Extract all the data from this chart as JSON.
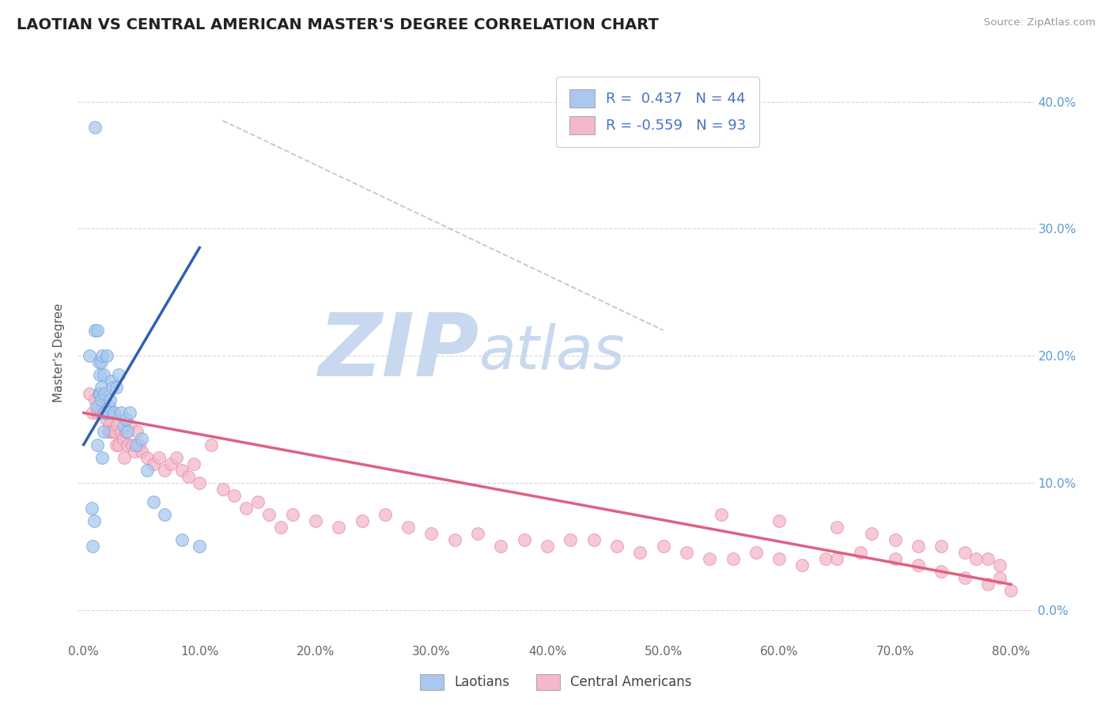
{
  "title": "LAOTIAN VS CENTRAL AMERICAN MASTER'S DEGREE CORRELATION CHART",
  "source": "Source: ZipAtlas.com",
  "ylabel": "Master's Degree",
  "xlim": [
    -0.005,
    0.82
  ],
  "ylim": [
    -0.025,
    0.43
  ],
  "legend_blue_label": "R =  0.437   N = 44",
  "legend_pink_label": "R = -0.559   N = 93",
  "laotian_color": "#a8c8f0",
  "laotian_edge_color": "#7aaad8",
  "central_american_color": "#f4b8ca",
  "central_american_edge_color": "#e890a8",
  "trendline_blue_color": "#3060b0",
  "trendline_pink_color": "#e06080",
  "dashed_line_color": "#b0b8c8",
  "title_color": "#222222",
  "watermark_zip": "ZIP",
  "watermark_atlas": "atlas",
  "watermark_color_zip": "#c8d8ee",
  "watermark_color_atlas": "#c8d8ee",
  "grid_color": "#cccccc",
  "x_tick_vals": [
    0.0,
    0.1,
    0.2,
    0.3,
    0.4,
    0.5,
    0.6,
    0.7,
    0.8
  ],
  "x_tick_labels": [
    "0.0%",
    "10.0%",
    "20.0%",
    "30.0%",
    "40.0%",
    "50.0%",
    "60.0%",
    "70.0%",
    "80.0%"
  ],
  "y_tick_vals": [
    0.0,
    0.1,
    0.2,
    0.3,
    0.4
  ],
  "y_tick_labels": [
    "0.0%",
    "10.0%",
    "20.0%",
    "30.0%",
    "40.0%"
  ],
  "blue_trendline_x": [
    0.0,
    0.1
  ],
  "blue_trendline_y": [
    0.13,
    0.285
  ],
  "pink_trendline_x": [
    0.0,
    0.8
  ],
  "pink_trendline_y": [
    0.155,
    0.02
  ],
  "dashed_line_x": [
    0.12,
    0.5
  ],
  "dashed_line_y": [
    0.385,
    0.22
  ],
  "laotian_x": [
    0.005,
    0.007,
    0.008,
    0.009,
    0.01,
    0.01,
    0.011,
    0.012,
    0.012,
    0.013,
    0.013,
    0.014,
    0.014,
    0.015,
    0.015,
    0.015,
    0.016,
    0.016,
    0.017,
    0.017,
    0.018,
    0.018,
    0.019,
    0.02,
    0.021,
    0.022,
    0.023,
    0.024,
    0.025,
    0.026,
    0.028,
    0.03,
    0.032,
    0.034,
    0.036,
    0.038,
    0.04,
    0.045,
    0.05,
    0.055,
    0.06,
    0.07,
    0.085,
    0.1
  ],
  "laotian_y": [
    0.2,
    0.08,
    0.05,
    0.07,
    0.38,
    0.22,
    0.16,
    0.13,
    0.22,
    0.17,
    0.195,
    0.185,
    0.17,
    0.175,
    0.165,
    0.195,
    0.2,
    0.12,
    0.185,
    0.14,
    0.17,
    0.155,
    0.155,
    0.2,
    0.155,
    0.16,
    0.165,
    0.18,
    0.175,
    0.155,
    0.175,
    0.185,
    0.155,
    0.145,
    0.15,
    0.14,
    0.155,
    0.13,
    0.135,
    0.11,
    0.085,
    0.075,
    0.055,
    0.05
  ],
  "central_american_x": [
    0.005,
    0.008,
    0.01,
    0.012,
    0.013,
    0.015,
    0.016,
    0.017,
    0.018,
    0.019,
    0.02,
    0.021,
    0.022,
    0.023,
    0.024,
    0.025,
    0.026,
    0.027,
    0.028,
    0.029,
    0.03,
    0.032,
    0.034,
    0.035,
    0.036,
    0.038,
    0.04,
    0.042,
    0.044,
    0.046,
    0.048,
    0.05,
    0.055,
    0.06,
    0.065,
    0.07,
    0.075,
    0.08,
    0.085,
    0.09,
    0.095,
    0.1,
    0.11,
    0.12,
    0.13,
    0.14,
    0.15,
    0.16,
    0.17,
    0.18,
    0.2,
    0.22,
    0.24,
    0.26,
    0.28,
    0.3,
    0.32,
    0.34,
    0.36,
    0.38,
    0.4,
    0.42,
    0.44,
    0.46,
    0.48,
    0.5,
    0.52,
    0.54,
    0.56,
    0.58,
    0.6,
    0.62,
    0.64,
    0.65,
    0.67,
    0.7,
    0.72,
    0.74,
    0.76,
    0.78,
    0.79,
    0.8,
    0.79,
    0.78,
    0.77,
    0.76,
    0.74,
    0.72,
    0.7,
    0.68,
    0.65,
    0.6,
    0.55
  ],
  "central_american_y": [
    0.17,
    0.155,
    0.165,
    0.155,
    0.16,
    0.155,
    0.165,
    0.16,
    0.155,
    0.15,
    0.155,
    0.14,
    0.145,
    0.14,
    0.14,
    0.155,
    0.14,
    0.14,
    0.13,
    0.145,
    0.13,
    0.14,
    0.135,
    0.12,
    0.14,
    0.13,
    0.145,
    0.13,
    0.125,
    0.14,
    0.13,
    0.125,
    0.12,
    0.115,
    0.12,
    0.11,
    0.115,
    0.12,
    0.11,
    0.105,
    0.115,
    0.1,
    0.13,
    0.095,
    0.09,
    0.08,
    0.085,
    0.075,
    0.065,
    0.075,
    0.07,
    0.065,
    0.07,
    0.075,
    0.065,
    0.06,
    0.055,
    0.06,
    0.05,
    0.055,
    0.05,
    0.055,
    0.055,
    0.05,
    0.045,
    0.05,
    0.045,
    0.04,
    0.04,
    0.045,
    0.04,
    0.035,
    0.04,
    0.04,
    0.045,
    0.04,
    0.035,
    0.03,
    0.025,
    0.02,
    0.025,
    0.015,
    0.035,
    0.04,
    0.04,
    0.045,
    0.05,
    0.05,
    0.055,
    0.06,
    0.065,
    0.07,
    0.075
  ]
}
